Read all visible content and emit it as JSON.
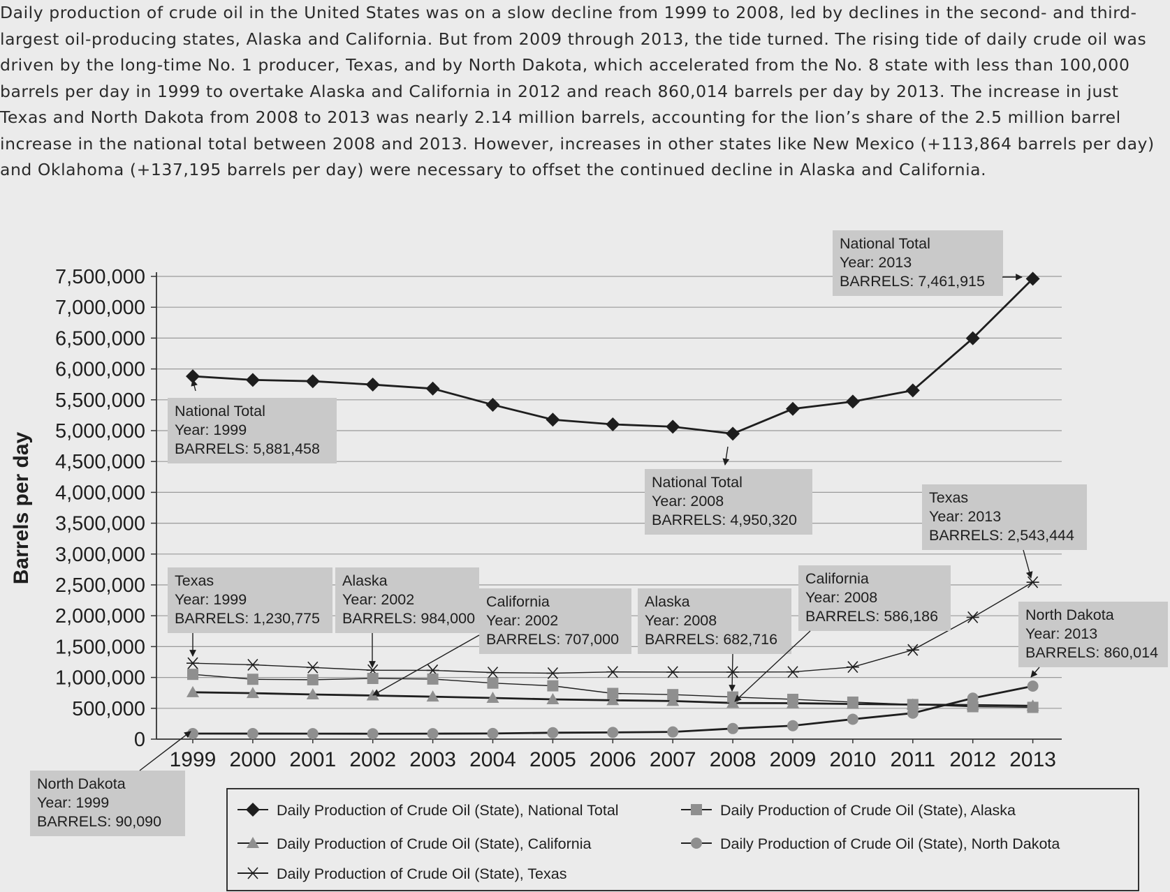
{
  "intro_text": "Daily production of crude oil in the United States was on a slow decline from 1999 to 2008, led by declines in the second- and third-largest oil-producing states, Alaska and California. But from 2009 through 2013, the tide turned. The rising tide of daily crude oil was driven by the long-time No. 1 producer, Texas, and by North Dakota, which accelerated from the No. 8 state with less than 100,000 barrels per day in 1999 to overtake Alaska and California in 2012 and reach 860,014 barrels per day by 2013. The increase in just Texas and North Dakota from 2008 to 2013 was nearly 2.14 million barrels, accounting for the lion’s share of the 2.5 million barrel increase in the national total between 2008 and 2013. However, increases in other states like New Mexico (+113,864 barrels per day) and Oklahoma (+137,195 barrels per day) were necessary to offset the continued decline in Alaska and California.",
  "colors": {
    "background": "#ebebeb",
    "callout": "#c9c9c9",
    "dark": "#1e1e1e",
    "grey": "#8f8f8f"
  },
  "chart_data": {
    "type": "line",
    "title": "",
    "xlabel": "",
    "ylabel": "Barrels per day",
    "ylim": [
      0,
      7500000
    ],
    "yticks": [
      0,
      500000,
      1000000,
      1500000,
      2000000,
      2500000,
      3000000,
      3500000,
      4000000,
      4500000,
      5000000,
      5500000,
      6000000,
      6500000,
      7000000,
      7500000
    ],
    "ytick_labels": [
      "0",
      "500,000",
      "1,000,000",
      "1,500,000",
      "2,000,000",
      "2,500,000",
      "3,000,000",
      "3,500,000",
      "4,000,000",
      "4,500,000",
      "5,000,000",
      "5,500,000",
      "6,000,000",
      "6,500,000",
      "7,000,000",
      "7,500,000"
    ],
    "categories": [
      "1999",
      "2000",
      "2001",
      "2002",
      "2003",
      "2004",
      "2005",
      "2006",
      "2007",
      "2008",
      "2009",
      "2010",
      "2011",
      "2012",
      "2013"
    ],
    "grid": "horizontal",
    "legend_position": "bottom",
    "series": [
      {
        "key": "national",
        "name": "Daily Production of Crude Oil (State), National Total",
        "marker": "diamond",
        "color": "#1e1e1e",
        "values": [
          5881458,
          5822000,
          5801000,
          5746000,
          5681000,
          5419000,
          5178000,
          5102000,
          5064000,
          4950320,
          5353000,
          5471000,
          5652000,
          6497000,
          7461915
        ]
      },
      {
        "key": "alaska",
        "name": "Daily Production of Crude Oil (State), Alaska",
        "marker": "square",
        "color": "#1e1e1e",
        "values": [
          1050000,
          970000,
          963000,
          984000,
          974000,
          908000,
          864000,
          741000,
          722000,
          682716,
          645000,
          600000,
          561000,
          526000,
          515000
        ]
      },
      {
        "key": "california",
        "name": "Daily Production of Crude Oil (State), California",
        "marker": "triangle",
        "color": "#1e1e1e",
        "values": [
          760000,
          745000,
          724000,
          707000,
          688000,
          667000,
          645000,
          630000,
          618000,
          586186,
          583000,
          570000,
          560000,
          552000,
          540000
        ]
      },
      {
        "key": "northdakota",
        "name": "Daily Production of Crude Oil (State), North Dakota",
        "marker": "circle",
        "color": "#1e1e1e",
        "values": [
          90090,
          90000,
          89000,
          88000,
          89000,
          92000,
          104000,
          109000,
          117000,
          172000,
          218000,
          323000,
          422000,
          664000,
          860014
        ]
      },
      {
        "key": "texas",
        "name": "Daily Production of Crude Oil (State), Texas",
        "marker": "star",
        "color": "#1e1e1e",
        "values": [
          1230775,
          1205000,
          1162000,
          1117000,
          1115000,
          1079000,
          1069000,
          1089000,
          1087000,
          1087000,
          1089000,
          1169000,
          1446000,
          1975000,
          2543444
        ]
      }
    ],
    "annotations": [
      {
        "series": "national",
        "lines": [
          "National Total",
          "Year: 1999",
          "BARRELS: 5,881,458"
        ]
      },
      {
        "series": "national",
        "lines": [
          "National Total",
          "Year: 2008",
          "BARRELS: 4,950,320"
        ]
      },
      {
        "series": "national",
        "lines": [
          "National Total",
          "Year: 2013",
          "BARRELS: 7,461,915"
        ]
      },
      {
        "series": "texas",
        "lines": [
          "Texas",
          "Year: 1999",
          "BARRELS: 1,230,775"
        ]
      },
      {
        "series": "alaska",
        "lines": [
          "Alaska",
          "Year: 2002",
          "BARRELS: 984,000"
        ]
      },
      {
        "series": "california",
        "lines": [
          "California",
          "Year: 2002",
          "BARRELS: 707,000"
        ]
      },
      {
        "series": "alaska",
        "lines": [
          "Alaska",
          "Year: 2008",
          "BARRELS: 682,716"
        ]
      },
      {
        "series": "california",
        "lines": [
          "California",
          "Year: 2008",
          "BARRELS: 586,186"
        ]
      },
      {
        "series": "texas",
        "lines": [
          "Texas",
          "Year: 2013",
          "BARRELS: 2,543,444"
        ]
      },
      {
        "series": "northdakota",
        "lines": [
          "North Dakota",
          "Year: 2013",
          "BARRELS: 860,014"
        ]
      },
      {
        "series": "northdakota",
        "lines": [
          "North Dakota",
          "Year: 1999",
          "BARRELS: 90,090"
        ]
      }
    ]
  }
}
